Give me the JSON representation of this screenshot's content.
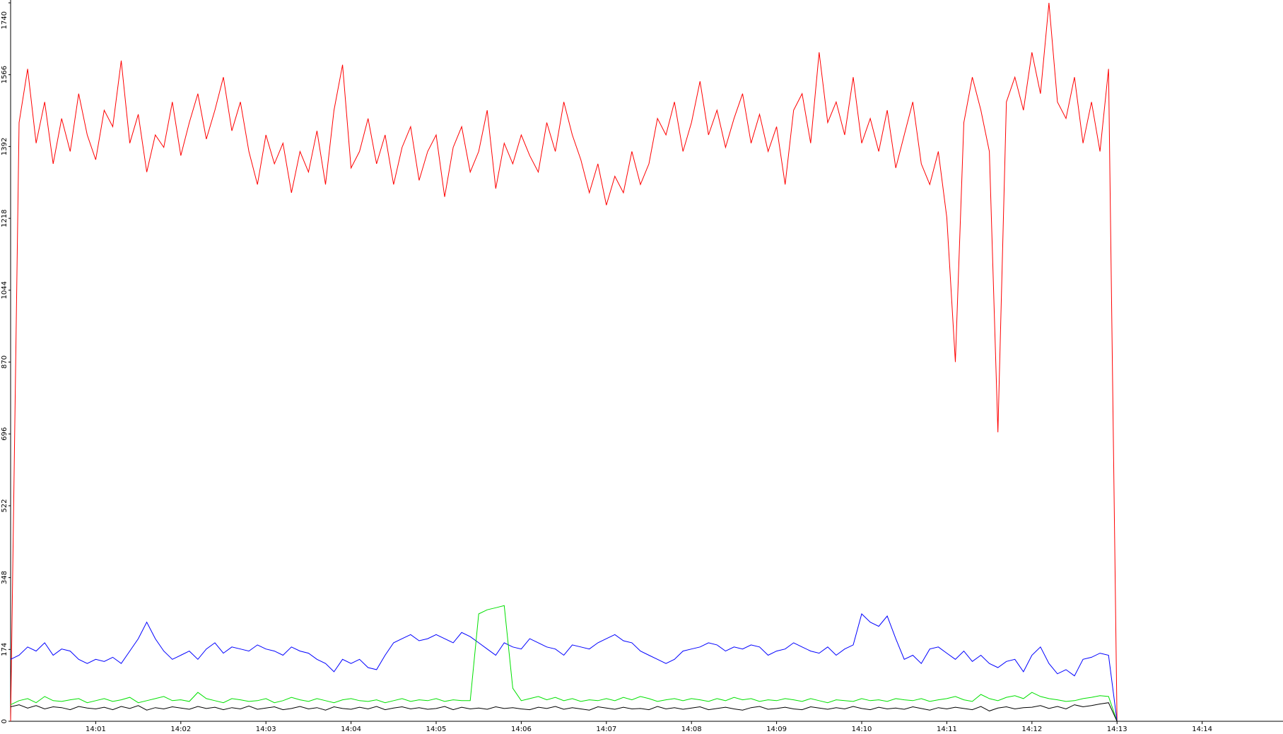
{
  "chart_data": {
    "type": "line",
    "x": [
      0,
      0.1,
      0.2,
      0.3,
      0.4,
      0.5,
      0.6,
      0.7,
      0.8,
      0.9,
      1,
      1.1,
      1.2,
      1.3,
      1.4,
      1.5,
      1.6,
      1.7,
      1.8,
      1.9,
      2,
      2.1,
      2.2,
      2.3,
      2.4,
      2.5,
      2.6,
      2.7,
      2.8,
      2.9,
      3,
      3.1,
      3.2,
      3.3,
      3.4,
      3.5,
      3.6,
      3.7,
      3.8,
      3.9,
      4,
      4.1,
      4.2,
      4.3,
      4.4,
      4.5,
      4.6,
      4.7,
      4.8,
      4.9,
      5,
      5.1,
      5.2,
      5.3,
      5.4,
      5.5,
      5.6,
      5.7,
      5.8,
      5.9,
      6,
      6.1,
      6.2,
      6.3,
      6.4,
      6.5,
      6.6,
      6.7,
      6.8,
      6.9,
      7,
      7.1,
      7.2,
      7.3,
      7.4,
      7.5,
      7.6,
      7.7,
      7.8,
      7.9,
      8,
      8.1,
      8.2,
      8.3,
      8.4,
      8.5,
      8.6,
      8.7,
      8.8,
      8.9,
      9,
      9.1,
      9.2,
      9.3,
      9.4,
      9.5,
      9.6,
      9.7,
      9.8,
      9.9,
      10,
      10.1,
      10.2,
      10.3,
      10.4,
      10.5,
      10.6,
      10.7,
      10.8,
      10.9,
      11,
      11.1,
      11.2,
      11.3,
      11.4,
      11.5,
      11.6,
      11.7,
      11.8,
      11.9,
      12,
      12.1,
      12.2,
      12.3,
      12.4,
      12.5,
      12.6,
      12.7,
      12.8,
      12.9,
      13
    ],
    "series": [
      {
        "color": "#ff0000",
        "values": [
          0,
          1450,
          1580,
          1400,
          1500,
          1350,
          1460,
          1380,
          1520,
          1420,
          1360,
          1480,
          1440,
          1600,
          1400,
          1470,
          1330,
          1420,
          1390,
          1500,
          1370,
          1450,
          1520,
          1410,
          1480,
          1560,
          1430,
          1500,
          1380,
          1300,
          1420,
          1350,
          1400,
          1280,
          1380,
          1330,
          1430,
          1300,
          1480,
          1590,
          1340,
          1380,
          1460,
          1350,
          1420,
          1300,
          1390,
          1440,
          1310,
          1380,
          1420,
          1270,
          1390,
          1440,
          1330,
          1380,
          1480,
          1290,
          1400,
          1350,
          1420,
          1370,
          1330,
          1450,
          1380,
          1500,
          1420,
          1360,
          1280,
          1350,
          1250,
          1320,
          1280,
          1380,
          1300,
          1350,
          1460,
          1420,
          1500,
          1380,
          1450,
          1550,
          1420,
          1480,
          1390,
          1460,
          1520,
          1400,
          1470,
          1380,
          1440,
          1300,
          1480,
          1520,
          1400,
          1620,
          1450,
          1500,
          1420,
          1560,
          1400,
          1460,
          1380,
          1480,
          1340,
          1420,
          1500,
          1350,
          1300,
          1380,
          1220,
          870,
          1450,
          1560,
          1480,
          1380,
          700,
          1500,
          1560,
          1480,
          1620,
          1520,
          1740,
          1500,
          1460,
          1560,
          1400,
          1500,
          1380,
          1580,
          0
        ]
      },
      {
        "color": "#0000ff",
        "values": [
          150,
          160,
          180,
          170,
          190,
          160,
          175,
          170,
          150,
          140,
          150,
          145,
          155,
          140,
          170,
          200,
          240,
          200,
          170,
          150,
          160,
          170,
          150,
          175,
          190,
          165,
          180,
          175,
          170,
          185,
          175,
          170,
          160,
          180,
          170,
          165,
          150,
          140,
          120,
          150,
          140,
          150,
          130,
          125,
          160,
          190,
          200,
          210,
          195,
          200,
          210,
          200,
          190,
          215,
          205,
          190,
          175,
          160,
          190,
          180,
          175,
          200,
          190,
          180,
          175,
          160,
          185,
          180,
          175,
          190,
          200,
          210,
          195,
          190,
          170,
          160,
          150,
          140,
          150,
          170,
          175,
          180,
          190,
          185,
          170,
          180,
          175,
          185,
          180,
          160,
          170,
          175,
          190,
          180,
          170,
          165,
          180,
          160,
          175,
          185,
          260,
          240,
          230,
          255,
          200,
          150,
          160,
          140,
          175,
          180,
          165,
          150,
          170,
          145,
          160,
          140,
          130,
          145,
          150,
          120,
          160,
          180,
          140,
          115,
          125,
          110,
          150,
          155,
          165,
          160,
          0
        ]
      },
      {
        "color": "#00e000",
        "values": [
          40,
          50,
          55,
          45,
          60,
          50,
          48,
          52,
          55,
          45,
          50,
          55,
          48,
          52,
          58,
          45,
          50,
          55,
          60,
          50,
          52,
          48,
          70,
          55,
          50,
          45,
          55,
          52,
          48,
          50,
          55,
          45,
          50,
          58,
          52,
          48,
          55,
          50,
          45,
          52,
          55,
          50,
          48,
          52,
          45,
          50,
          55,
          48,
          52,
          50,
          55,
          48,
          52,
          50,
          50,
          260,
          270,
          275,
          280,
          80,
          50,
          55,
          60,
          52,
          58,
          50,
          55,
          48,
          52,
          50,
          55,
          50,
          58,
          52,
          60,
          55,
          48,
          52,
          55,
          50,
          55,
          52,
          48,
          55,
          50,
          58,
          52,
          55,
          48,
          52,
          50,
          55,
          52,
          48,
          55,
          50,
          45,
          52,
          50,
          48,
          55,
          50,
          52,
          48,
          55,
          52,
          50,
          55,
          48,
          52,
          55,
          60,
          52,
          48,
          65,
          55,
          50,
          58,
          62,
          55,
          70,
          60,
          55,
          52,
          48,
          50,
          55,
          58,
          62,
          60,
          0
        ]
      },
      {
        "color": "#000000",
        "values": [
          35,
          40,
          32,
          38,
          30,
          35,
          33,
          28,
          36,
          32,
          30,
          34,
          28,
          36,
          31,
          38,
          27,
          33,
          30,
          35,
          32,
          29,
          36,
          31,
          34,
          28,
          33,
          30,
          37,
          29,
          32,
          35,
          28,
          31,
          36,
          30,
          33,
          27,
          35,
          31,
          29,
          34,
          30,
          36,
          28,
          32,
          35,
          30,
          33,
          29,
          31,
          36,
          28,
          34,
          30,
          32,
          29,
          35,
          31,
          33,
          30,
          28,
          34,
          31,
          36,
          29,
          33,
          30,
          27,
          35,
          32,
          29,
          34,
          30,
          31,
          28,
          36,
          30,
          33,
          29,
          32,
          35,
          28,
          31,
          34,
          30,
          27,
          33,
          36,
          29,
          31,
          34,
          30,
          28,
          35,
          32,
          29,
          33,
          30,
          36,
          31,
          28,
          34,
          30,
          32,
          29,
          35,
          31,
          27,
          33,
          30,
          34,
          31,
          28,
          36,
          25,
          32,
          35,
          30,
          33,
          34,
          38,
          31,
          36,
          30,
          40,
          35,
          38,
          42,
          45,
          0
        ]
      }
    ],
    "xlim": [
      0,
      14.95
    ],
    "xticks": [
      {
        "value": 1,
        "label": "14:01"
      },
      {
        "value": 2,
        "label": "14:02"
      },
      {
        "value": 3,
        "label": "14:03"
      },
      {
        "value": 4,
        "label": "14:04"
      },
      {
        "value": 5,
        "label": "14:05"
      },
      {
        "value": 6,
        "label": "14:06"
      },
      {
        "value": 7,
        "label": "14:07"
      },
      {
        "value": 8,
        "label": "14:08"
      },
      {
        "value": 9,
        "label": "14:09"
      },
      {
        "value": 10,
        "label": "14:10"
      },
      {
        "value": 11,
        "label": "14:11"
      },
      {
        "value": 12,
        "label": "14:12"
      },
      {
        "value": 13,
        "label": "14:13"
      },
      {
        "value": 14,
        "label": "14:14"
      }
    ],
    "ylim": [
      0,
      1740
    ],
    "yticks": [
      0,
      174,
      348,
      522,
      696,
      870,
      1044,
      1218,
      1392,
      1566,
      1740
    ]
  }
}
